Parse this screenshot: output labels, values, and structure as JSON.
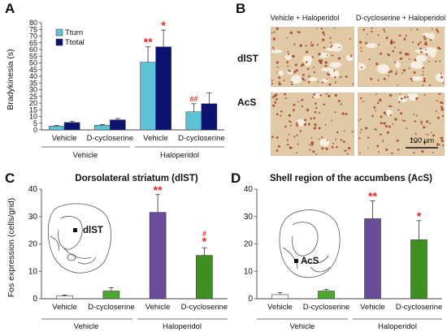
{
  "colors": {
    "tturn": "#5bc2d8",
    "ttotal": "#0d1270",
    "vehicle_bar": "#ffffff",
    "dcs_bar": "#4ea72e",
    "hal_vehicle_bar": "#6b4c9a",
    "hal_dcs_bar": "#3f8f23",
    "significance": "#e8251f",
    "tissue": "#e2c9a6",
    "stain": "#9a3a20"
  },
  "panels": {
    "A": "A",
    "B": "B",
    "C": "C",
    "D": "D"
  },
  "chart_data": [
    {
      "type": "bar",
      "panel": "A",
      "ylabel": "Bradykinesia (s)",
      "ylim": [
        0,
        80
      ],
      "yticks": [
        "0",
        "5",
        "10",
        "15",
        "20",
        "25",
        "30",
        "35",
        "40",
        "45",
        "50",
        "55",
        "60",
        "65",
        "70",
        "75",
        "80"
      ],
      "categories": [
        "Vehicle",
        "D-cycloserine",
        "Vehicle",
        "D-cycloserine"
      ],
      "groups": [
        "Vehicle",
        "Haloperidol"
      ],
      "legend": [
        "Tturn",
        "Ttotal"
      ],
      "series": [
        {
          "name": "Tturn",
          "values": [
            2.8,
            3.5,
            50.5,
            13.5
          ],
          "errors": [
            0.5,
            0.5,
            11.5,
            6
          ]
        },
        {
          "name": "Ttotal",
          "values": [
            5.5,
            7.5,
            62,
            19.5
          ],
          "errors": [
            1,
            1,
            12.5,
            8
          ]
        }
      ],
      "annotations": [
        {
          "label": "**",
          "category": 2,
          "series": 0
        },
        {
          "label": "*",
          "category": 2,
          "series": 1
        },
        {
          "label": "##",
          "category": 3,
          "series": 0
        }
      ]
    },
    {
      "type": "bar",
      "panel": "C",
      "title": "Dorsolateral striatum (dlST)",
      "ylabel": "Fos expression (cells/grid)",
      "ylim": [
        0,
        40
      ],
      "yticks": [
        "0",
        "10",
        "20",
        "30",
        "40"
      ],
      "categories": [
        "Vehicle",
        "D-cycloserine",
        "Vehicle",
        "D-cycloserine"
      ],
      "groups": [
        "Vehicle",
        "Haloperidol"
      ],
      "values": [
        1,
        2.8,
        31.5,
        15.8
      ],
      "errors": [
        0.3,
        1.2,
        6.5,
        2.8
      ],
      "annotations": [
        {
          "label": "**",
          "category": 2
        },
        {
          "label": "#",
          "category": 3
        },
        {
          "label": "*",
          "category": 3
        }
      ],
      "region_label": "dlST"
    },
    {
      "type": "bar",
      "panel": "D",
      "title": "Shell region of the accumbens (AcS)",
      "ylim": [
        0,
        40
      ],
      "yticks": [
        "0",
        "10",
        "20",
        "30",
        "40"
      ],
      "categories": [
        "Vehicle",
        "D-cycloserine",
        "Vehicle",
        "D-cycloserine"
      ],
      "groups": [
        "Vehicle",
        "Haloperidol"
      ],
      "values": [
        1.5,
        2.8,
        29.2,
        21.5
      ],
      "errors": [
        0.7,
        0.6,
        6.5,
        7
      ],
      "annotations": [
        {
          "label": "**",
          "category": 2
        },
        {
          "label": "*",
          "category": 3
        }
      ],
      "region_label": "AcS"
    }
  ],
  "micrographs": {
    "columns": [
      "Vehicle + Haloperidol",
      "D-cycloserine + Haloperidol"
    ],
    "rows": [
      "dlST",
      "AcS"
    ],
    "scale_bar": "100 µm"
  }
}
